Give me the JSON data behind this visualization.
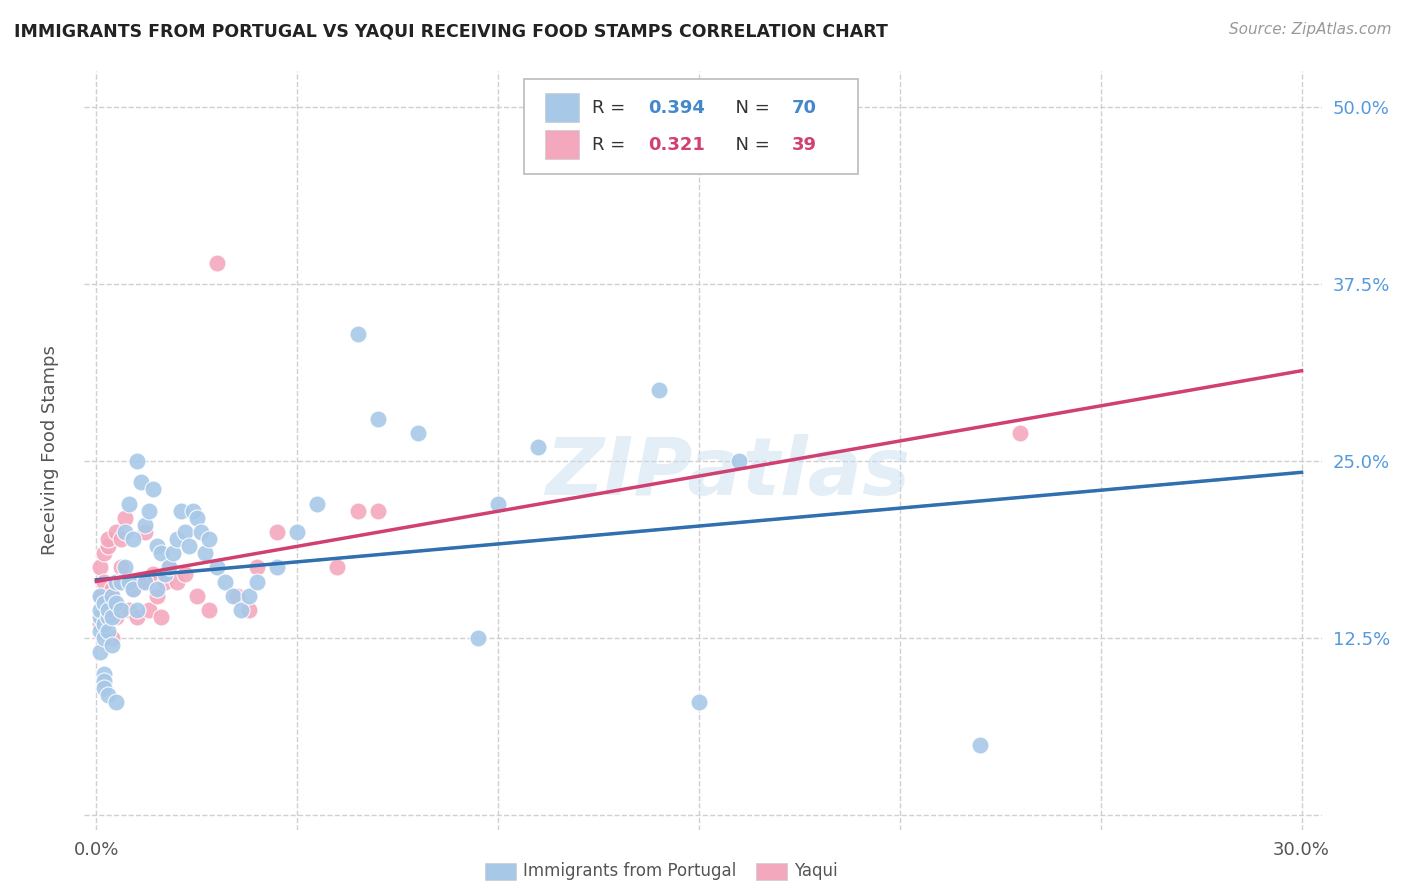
{
  "title": "IMMIGRANTS FROM PORTUGAL VS YAQUI RECEIVING FOOD STAMPS CORRELATION CHART",
  "source": "Source: ZipAtlas.com",
  "ylabel": "Receiving Food Stamps",
  "xlim": [
    0.0,
    0.3
  ],
  "ylim": [
    0.0,
    0.52
  ],
  "xtick_positions": [
    0.0,
    0.05,
    0.1,
    0.15,
    0.2,
    0.25,
    0.3
  ],
  "xticklabels": [
    "0.0%",
    "",
    "",
    "",
    "",
    "",
    "30.0%"
  ],
  "ytick_positions": [
    0.0,
    0.125,
    0.25,
    0.375,
    0.5
  ],
  "yticklabels_right": [
    "",
    "12.5%",
    "25.0%",
    "37.5%",
    "50.0%"
  ],
  "grid_color": "#d0d0d0",
  "background_color": "#ffffff",
  "watermark": "ZIPatlas",
  "blue_color": "#a8c8e8",
  "pink_color": "#f4a8be",
  "blue_line_color": "#3070b0",
  "pink_line_color": "#d04070",
  "blue_line_style": "--",
  "pink_line_style": "-",
  "label1": "Immigrants from Portugal",
  "label2": "Yaqui",
  "legend_blue_r": "0.394",
  "legend_blue_n": "70",
  "legend_pink_r": "0.321",
  "legend_pink_n": "39",
  "blue_x": [
    0.001,
    0.001,
    0.001,
    0.001,
    0.001,
    0.002,
    0.002,
    0.002,
    0.002,
    0.002,
    0.002,
    0.003,
    0.003,
    0.003,
    0.003,
    0.004,
    0.004,
    0.004,
    0.005,
    0.005,
    0.005,
    0.006,
    0.006,
    0.007,
    0.007,
    0.008,
    0.008,
    0.009,
    0.009,
    0.01,
    0.01,
    0.011,
    0.012,
    0.012,
    0.013,
    0.014,
    0.015,
    0.015,
    0.016,
    0.017,
    0.018,
    0.019,
    0.02,
    0.021,
    0.022,
    0.023,
    0.024,
    0.025,
    0.026,
    0.027,
    0.028,
    0.03,
    0.032,
    0.034,
    0.036,
    0.038,
    0.04,
    0.045,
    0.05,
    0.055,
    0.065,
    0.07,
    0.08,
    0.095,
    0.1,
    0.11,
    0.14,
    0.15,
    0.16,
    0.22
  ],
  "blue_y": [
    0.13,
    0.14,
    0.145,
    0.155,
    0.115,
    0.125,
    0.135,
    0.15,
    0.1,
    0.095,
    0.09,
    0.14,
    0.13,
    0.145,
    0.085,
    0.155,
    0.14,
    0.12,
    0.165,
    0.15,
    0.08,
    0.145,
    0.165,
    0.2,
    0.175,
    0.22,
    0.165,
    0.195,
    0.16,
    0.25,
    0.145,
    0.235,
    0.205,
    0.165,
    0.215,
    0.23,
    0.19,
    0.16,
    0.185,
    0.17,
    0.175,
    0.185,
    0.195,
    0.215,
    0.2,
    0.19,
    0.215,
    0.21,
    0.2,
    0.185,
    0.195,
    0.175,
    0.165,
    0.155,
    0.145,
    0.155,
    0.165,
    0.175,
    0.2,
    0.22,
    0.34,
    0.28,
    0.27,
    0.125,
    0.22,
    0.26,
    0.3,
    0.08,
    0.25,
    0.05
  ],
  "pink_x": [
    0.001,
    0.001,
    0.001,
    0.002,
    0.002,
    0.002,
    0.003,
    0.003,
    0.004,
    0.004,
    0.005,
    0.005,
    0.006,
    0.006,
    0.007,
    0.008,
    0.009,
    0.01,
    0.011,
    0.012,
    0.013,
    0.014,
    0.015,
    0.016,
    0.017,
    0.018,
    0.02,
    0.022,
    0.025,
    0.028,
    0.03,
    0.035,
    0.038,
    0.04,
    0.045,
    0.06,
    0.065,
    0.07,
    0.23
  ],
  "pink_y": [
    0.155,
    0.175,
    0.135,
    0.165,
    0.145,
    0.185,
    0.19,
    0.195,
    0.16,
    0.125,
    0.2,
    0.14,
    0.175,
    0.195,
    0.21,
    0.145,
    0.16,
    0.14,
    0.165,
    0.2,
    0.145,
    0.17,
    0.155,
    0.14,
    0.165,
    0.175,
    0.165,
    0.17,
    0.155,
    0.145,
    0.39,
    0.155,
    0.145,
    0.175,
    0.2,
    0.175,
    0.215,
    0.215,
    0.27
  ]
}
